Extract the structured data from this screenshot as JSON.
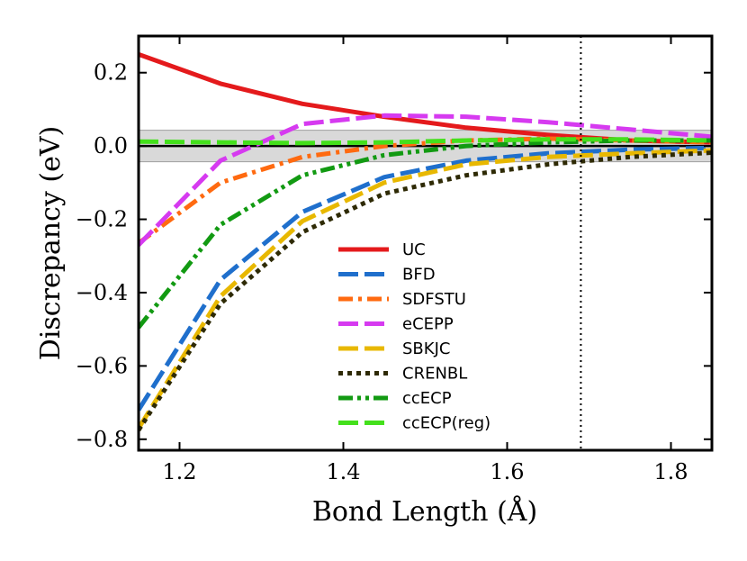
{
  "chart_data": {
    "type": "line",
    "title": "",
    "xlabel": "Bond Length (Å)",
    "ylabel": "Discrepancy (eV)",
    "xlim": [
      1.15,
      1.85
    ],
    "ylim": [
      -0.83,
      0.3
    ],
    "xticks": [
      1.2,
      1.4,
      1.6,
      1.8
    ],
    "xtick_labels": [
      "1.2",
      "1.4",
      "1.6",
      "1.8"
    ],
    "yticks": [
      -0.8,
      -0.6,
      -0.4,
      -0.2,
      0.0,
      0.2
    ],
    "ytick_labels": [
      "−0.8",
      "−0.6",
      "−0.4",
      "−0.2",
      "0.0",
      "0.2"
    ],
    "chemical_accuracy_band": [
      -0.043,
      0.043
    ],
    "reference_hline": 0.0,
    "vline_x": 1.69,
    "legend_position": "lower-center",
    "grid": false,
    "x": [
      1.15,
      1.25,
      1.35,
      1.45,
      1.55,
      1.65,
      1.75,
      1.85
    ],
    "series": [
      {
        "name": "UC",
        "color": "#e41a1c",
        "style": "solid",
        "values": [
          0.25,
          0.17,
          0.115,
          0.08,
          0.05,
          0.03,
          0.015,
          0.01
        ]
      },
      {
        "name": "BFD",
        "color": "#1f6fcc",
        "style": "dashed",
        "values": [
          -0.72,
          -0.365,
          -0.18,
          -0.085,
          -0.04,
          -0.02,
          -0.01,
          -0.005
        ]
      },
      {
        "name": "SDFSTU",
        "color": "#ff6a10",
        "style": "dashdot",
        "values": [
          -0.265,
          -0.1,
          -0.03,
          0.0,
          0.015,
          0.02,
          0.015,
          0.01
        ]
      },
      {
        "name": "eCEPP",
        "color": "#d63af0",
        "style": "dashed",
        "values": [
          -0.27,
          -0.04,
          0.06,
          0.083,
          0.08,
          0.065,
          0.045,
          0.025
        ]
      },
      {
        "name": "SBKJC",
        "color": "#e8b800",
        "style": "dashed",
        "values": [
          -0.77,
          -0.41,
          -0.205,
          -0.1,
          -0.05,
          -0.03,
          -0.02,
          -0.012
        ]
      },
      {
        "name": "CRENBL",
        "color": "#2e2a05",
        "style": "dotted",
        "values": [
          -0.775,
          -0.43,
          -0.235,
          -0.13,
          -0.08,
          -0.05,
          -0.03,
          -0.018
        ]
      },
      {
        "name": "ccECP",
        "color": "#129a12",
        "style": "dashdotdot",
        "values": [
          -0.495,
          -0.215,
          -0.08,
          -0.025,
          0.0,
          0.01,
          0.015,
          0.015
        ]
      },
      {
        "name": "ccECP(reg)",
        "color": "#44e01c",
        "style": "dashed",
        "values": [
          0.012,
          0.01,
          0.008,
          0.01,
          0.015,
          0.018,
          0.018,
          0.015
        ]
      }
    ]
  }
}
